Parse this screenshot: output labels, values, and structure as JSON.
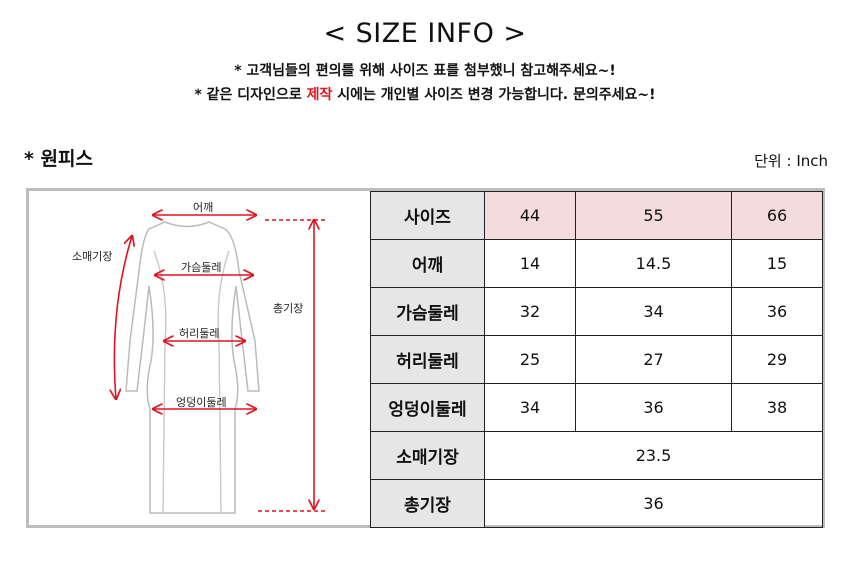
{
  "title": "< SIZE INFO >",
  "notes": {
    "line1": "* 고객님들의 편의를 위해 사이즈 표를 첨부했니 참고해주세요~!",
    "line2_pre": "* 같은 디자인으로 ",
    "line2_red": "제작",
    "line2_post": " 시에는 개인별 사이즈 변경 가능합니다. 문의주세요~!"
  },
  "section": "* 원피스",
  "unit": "단위 : Inch",
  "diagram": {
    "shoulder": "어깨",
    "sleeve": "소매기장",
    "chest": "가슴둘레",
    "waist": "허리둘레",
    "hip": "엉덩이둘레",
    "length": "총기장"
  },
  "colors": {
    "accent": "#e0141e",
    "header_bg": "#f5dcdc",
    "label_bg": "#e6e6e6"
  },
  "table": {
    "header": {
      "label": "사이즈",
      "sizes": [
        "44",
        "55",
        "66"
      ]
    },
    "rows": [
      {
        "label": "어깨",
        "values": [
          "14",
          "14.5",
          "15"
        ]
      },
      {
        "label": "가슴둘레",
        "values": [
          "32",
          "34",
          "36"
        ]
      },
      {
        "label": "허리둘레",
        "values": [
          "25",
          "27",
          "29"
        ]
      },
      {
        "label": "엉덩이둘레",
        "values": [
          "34",
          "36",
          "38"
        ]
      }
    ],
    "merged_rows": [
      {
        "label": "소매기장",
        "value": "23.5"
      },
      {
        "label": "총기장",
        "value": "36"
      }
    ]
  }
}
